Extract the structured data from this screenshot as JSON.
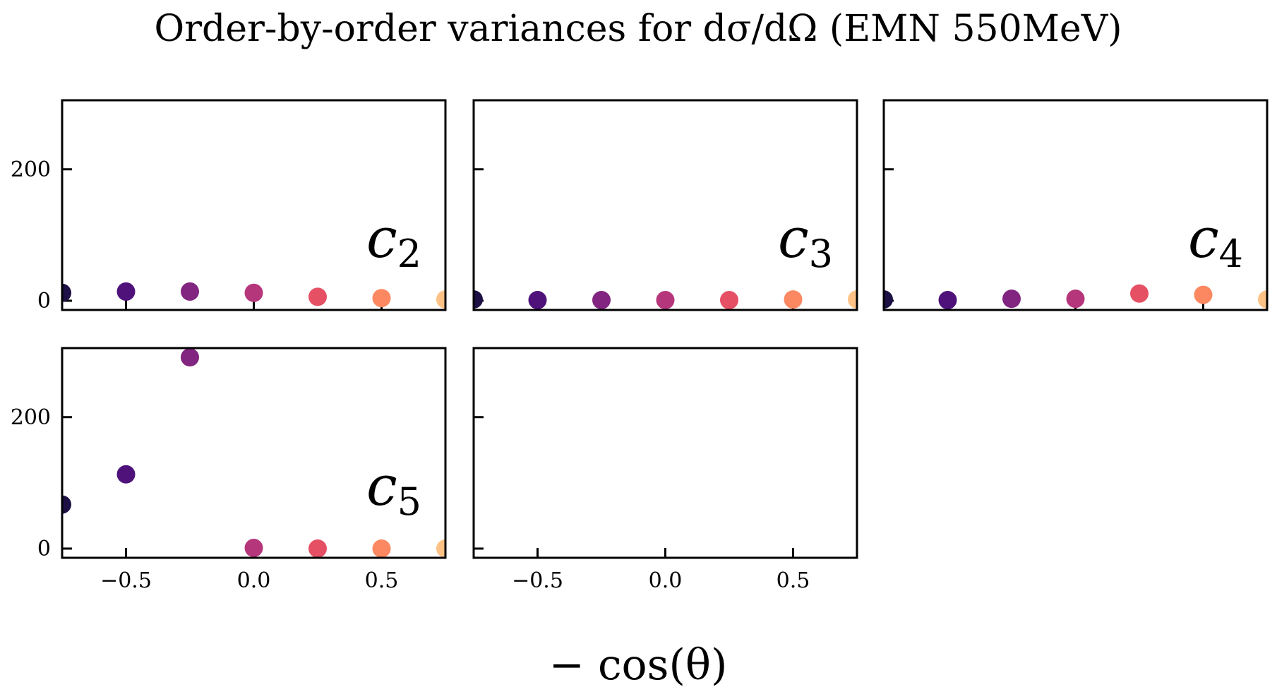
{
  "chart_data": {
    "type": "scatter",
    "title": "Order-by-order variances for dσ/dΩ (EMN 550MeV)",
    "xlabel": "− cos(θ)",
    "ylabel": "",
    "xlim": [
      -0.75,
      0.75
    ],
    "ylim": [
      -14,
      305
    ],
    "xticks": [
      -0.5,
      0.0,
      0.5
    ],
    "xtick_labels": [
      "−0.5",
      "0.0",
      "0.5"
    ],
    "yticks": [
      0,
      200
    ],
    "ytick_labels": [
      "0",
      "200"
    ],
    "grid": false,
    "shared_x": [
      -0.75,
      -0.5,
      -0.25,
      0.0,
      0.25,
      0.5,
      0.75
    ],
    "point_colors": [
      "#1c1044",
      "#4f127b",
      "#812581",
      "#b5367a",
      "#e55064",
      "#fb8861",
      "#fec287"
    ],
    "panels": [
      {
        "label_base": "c",
        "label_sub": "2",
        "values": [
          12,
          14,
          14,
          12,
          6,
          4,
          2
        ]
      },
      {
        "label_base": "c",
        "label_sub": "3",
        "values": [
          2,
          1,
          1,
          1,
          1,
          2,
          2
        ]
      },
      {
        "label_base": "c",
        "label_sub": "4",
        "values": [
          2,
          1,
          3,
          3,
          11,
          9,
          2
        ]
      },
      {
        "label_base": "c",
        "label_sub": "5",
        "values": [
          67,
          113,
          291,
          1,
          0,
          0,
          0
        ]
      },
      {
        "label_base": "",
        "label_sub": "",
        "values": []
      }
    ]
  }
}
